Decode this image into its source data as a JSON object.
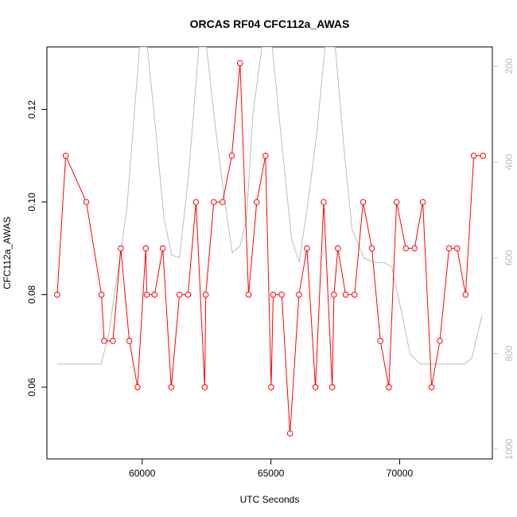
{
  "chart_data": {
    "type": "line",
    "title": "ORCAS RF04 CFC112a_AWAS",
    "xlabel": "UTC Seconds",
    "ylabel": "CFC112a_AWAS",
    "xlim": [
      56300,
      73600
    ],
    "ylim": [
      0.0445,
      0.1335
    ],
    "x_ticks": [
      60000,
      65000,
      70000
    ],
    "y_ticks": [
      0.06,
      0.08,
      0.1,
      0.12
    ],
    "y2_ticks": [
      200,
      400,
      600,
      800,
      1000
    ],
    "y2lim": [
      1020,
      160
    ],
    "grid": false,
    "series": [
      {
        "color": "#ff0000",
        "marker": "open-circle",
        "x": [
          56700,
          57030,
          57830,
          58420,
          58520,
          58860,
          59170,
          59500,
          59820,
          60140,
          60180,
          60480,
          60800,
          61130,
          61450,
          61780,
          62090,
          62430,
          62470,
          62780,
          63120,
          63480,
          63800,
          64130,
          64450,
          64790,
          65010,
          65090,
          65420,
          65740,
          66090,
          66400,
          66730,
          67050,
          67380,
          67450,
          67600,
          67900,
          68250,
          68580,
          68920,
          69250,
          69580,
          69880,
          70240,
          70580,
          70900,
          71240,
          71560,
          71920,
          72230,
          72560,
          72880,
          73240
        ],
        "values": [
          0.08,
          0.11,
          0.1,
          0.08,
          0.07,
          0.07,
          0.09,
          0.07,
          0.06,
          0.09,
          0.08,
          0.08,
          0.09,
          0.06,
          0.08,
          0.08,
          0.1,
          0.06,
          0.08,
          0.1,
          0.1,
          0.11,
          0.13,
          0.08,
          0.1,
          0.11,
          0.06,
          0.08,
          0.08,
          0.05,
          0.08,
          0.09,
          0.06,
          0.1,
          0.06,
          0.08,
          0.09,
          0.08,
          0.08,
          0.1,
          0.09,
          0.07,
          0.06,
          0.1,
          0.09,
          0.09,
          0.1,
          0.06,
          0.07,
          0.09,
          0.09,
          0.08,
          0.11,
          0.11
        ]
      },
      {
        "color": "#bbbbbb",
        "axis": "right",
        "x": [
          56700,
          58400,
          58700,
          59400,
          59900,
          60200,
          60500,
          60850,
          61150,
          61450,
          61800,
          62200,
          62500,
          62850,
          63150,
          63500,
          63800,
          64050,
          64300,
          64650,
          65050,
          65400,
          65800,
          66100,
          66500,
          66800,
          67100,
          67500,
          67850,
          68150,
          68600,
          69000,
          69400,
          69700,
          70100,
          70400,
          70800,
          71300,
          71700,
          72100,
          72500,
          72800,
          73200
        ],
        "values": [
          822,
          822,
          760,
          500,
          160,
          160,
          320,
          520,
          595,
          600,
          430,
          160,
          160,
          330,
          460,
          590,
          575,
          520,
          300,
          160,
          160,
          350,
          560,
          610,
          460,
          330,
          160,
          160,
          380,
          540,
          600,
          610,
          610,
          620,
          720,
          800,
          822,
          822,
          822,
          822,
          822,
          810,
          720
        ]
      }
    ]
  }
}
